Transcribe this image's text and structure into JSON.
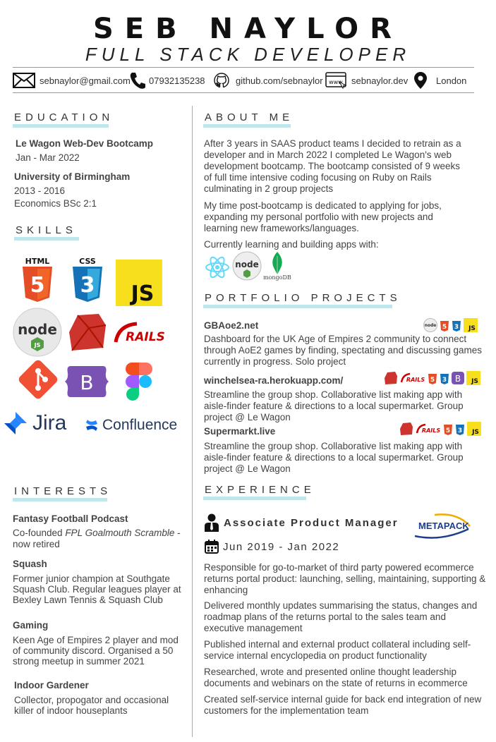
{
  "header": {
    "name": "SEB NAYLOR",
    "role": "FULL STACK DEVELOPER"
  },
  "contact": {
    "email": "sebnaylor@gmail.com",
    "phone": "07932135238",
    "github": "github.com/sebnaylor",
    "website": "sebnaylor.dev",
    "location": "London"
  },
  "education": {
    "title": "EDUCATION",
    "items": [
      {
        "school": "Le Wagon Web-Dev Bootcamp",
        "dates": "Jan - Mar 2022"
      },
      {
        "school": "University of Birmingham",
        "dates": "2013 - 2016",
        "degree": "Economics BSc 2:1"
      }
    ]
  },
  "skills": {
    "title": "SKILLS",
    "icons": [
      "html5-icon",
      "css3-icon",
      "javascript-icon",
      "nodejs-icon",
      "ruby-icon",
      "rails-icon",
      "git-icon",
      "bootstrap-icon",
      "figma-icon",
      "jira-icon",
      "confluence-icon"
    ],
    "jira_label": "Jira",
    "confluence_label": "Confluence"
  },
  "interests": {
    "title": "INTERESTS",
    "items": [
      {
        "title": "Fantasy Football Podcast",
        "text_prefix": "Co-founded ",
        "text_italic": "FPL Goalmouth Scramble",
        "text_suffix": " - now retired"
      },
      {
        "title": "Squash",
        "text": "Former junior champion at Southgate Squash Club. Regular leagues player at Bexley Lawn Tennis & Squash Club"
      },
      {
        "title": "Gaming",
        "text": "Keen Age of Empires 2 player and mod of community discord. Organised a 50 strong meetup in summer 2021"
      },
      {
        "title": "Indoor Gardener",
        "text": "Collector, propogator and occasional killer of indoor houseplants"
      }
    ]
  },
  "about": {
    "title": "ABOUT ME",
    "p1": "After 3 years in SAAS product teams I decided to retrain as a developer and in March 2022 I completed Le Wagon's web development bootcamp. The bootcamp consisted of 9 weeks of full time intensive coding focusing on Ruby on Rails culminating in 2 group projects",
    "p2": "My time post-bootcamp is dedicated to applying for jobs, expanding my personal portfolio with new projects and learning new frameworks/languages.",
    "p3": "Currently learning and building apps with:",
    "mongodb_label": "mongoDB"
  },
  "portfolio": {
    "title": "PORTFOLIO PROJECTS",
    "projects": [
      {
        "name": "GBAoe2.net",
        "desc": "Dashboard for the UK Age of Empires 2 community to connect through AoE2 games by finding, spectating and discussing games currently in progress. Solo project"
      },
      {
        "name": "winchelsea-ra.herokuapp.com/",
        "desc": "Streamline the group shop. Collaborative list making app with aisle-finder feature & directions to a local supermarket. Group project @ Le Wagon"
      },
      {
        "name": "Supermarkt.live",
        "desc": "Streamline the group shop. Collaborative list making app with aisle-finder feature & directions to a local supermarket. Group project @ Le Wagon"
      }
    ]
  },
  "experience": {
    "title": "EXPERIENCE",
    "job_title": "Associate Product Manager",
    "company": "METAPACK",
    "dates": "Jun 2019 - Jan 2022",
    "bullets": [
      "Responsible for go-to-market of third party powered ecommerce returns portal product: launching, selling, maintaining, supporting & enhancing",
      "Delivered monthly updates summarising the status, changes and roadmap plans of the returns portal to the sales team and executive management",
      "Published internal and external product collateral including self-service internal encyclopedia on product functionality",
      "Researched, wrote and presented online thought leadership documents and webinars on the state of returns in ecommerce",
      "Created self-service internal guide for back end integration of new customers for the implementation team"
    ]
  },
  "colors": {
    "accent_bar": "#bfe6ea",
    "text": "#444444"
  }
}
